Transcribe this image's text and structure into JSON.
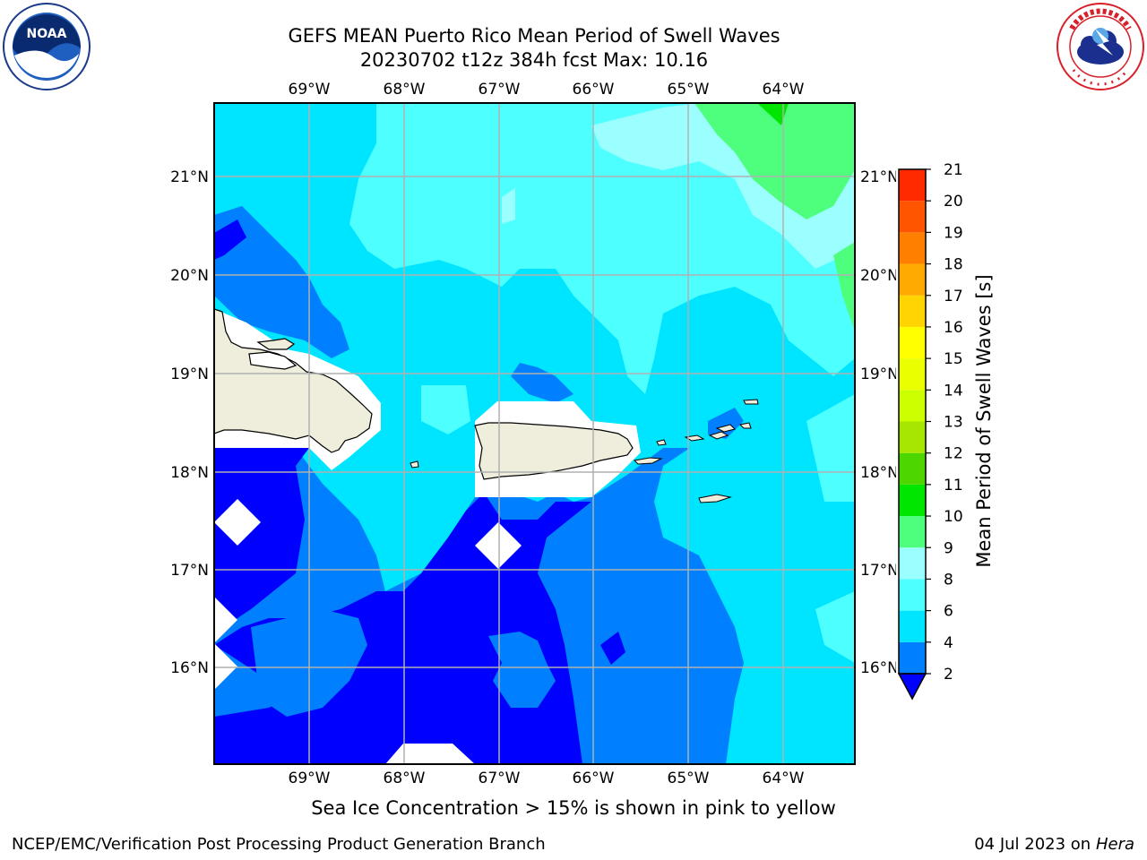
{
  "header": {
    "title_line1": "GEFS MEAN Puerto Rico Mean Period of Swell Waves",
    "title_line2": "20230702 t12z 384h fcst   Max: 10.16"
  },
  "logos": {
    "left": "NOAA",
    "left_ring_text": "NATIONAL OCEANIC AND ATMOSPHERIC ADMINISTRATION · U.S. DEPARTMENT OF COMMERCE",
    "right_ring_text": "NATIONAL WEATHER SERVICE"
  },
  "map": {
    "lon_labels": [
      "69°W",
      "68°W",
      "67°W",
      "66°W",
      "65°W",
      "64°W"
    ],
    "lat_labels": [
      "21°N",
      "20°N",
      "19°N",
      "18°N",
      "17°N",
      "16°N"
    ]
  },
  "colorbar": {
    "title": "Mean Period of Swell Waves [s]",
    "ticks": [
      "2",
      "4",
      "6",
      "8",
      "9",
      "10",
      "11",
      "12",
      "13",
      "14",
      "15",
      "16",
      "17",
      "18",
      "19",
      "20",
      "21"
    ],
    "colors": [
      "#007fff",
      "#00e5ff",
      "#4dffff",
      "#9cffff",
      "#4dff7c",
      "#00e600",
      "#4dd600",
      "#a6e600",
      "#ccff00",
      "#eaff00",
      "#ffff00",
      "#ffd400",
      "#ffaa00",
      "#ff8000",
      "#ff5500",
      "#ff2a00",
      "#ff0000"
    ],
    "under_color": "#0000ff"
  },
  "palette": {
    "lt2": "#0000ff",
    "b2_4": "#007fff",
    "b4_6": "#00e5ff",
    "b6_8": "#4dffff",
    "b8_9": "#9cffff",
    "b9_10": "#4dff7c",
    "b10_11": "#00e600",
    "land": "#efeedc"
  },
  "footer": {
    "ice_note": "Sea Ice Concentration > 15% is shown in pink to yellow",
    "left": "NCEP/EMC/Verification Post Processing Product Generation Branch",
    "date": "04 Jul 2023 on",
    "host": "Hera"
  }
}
